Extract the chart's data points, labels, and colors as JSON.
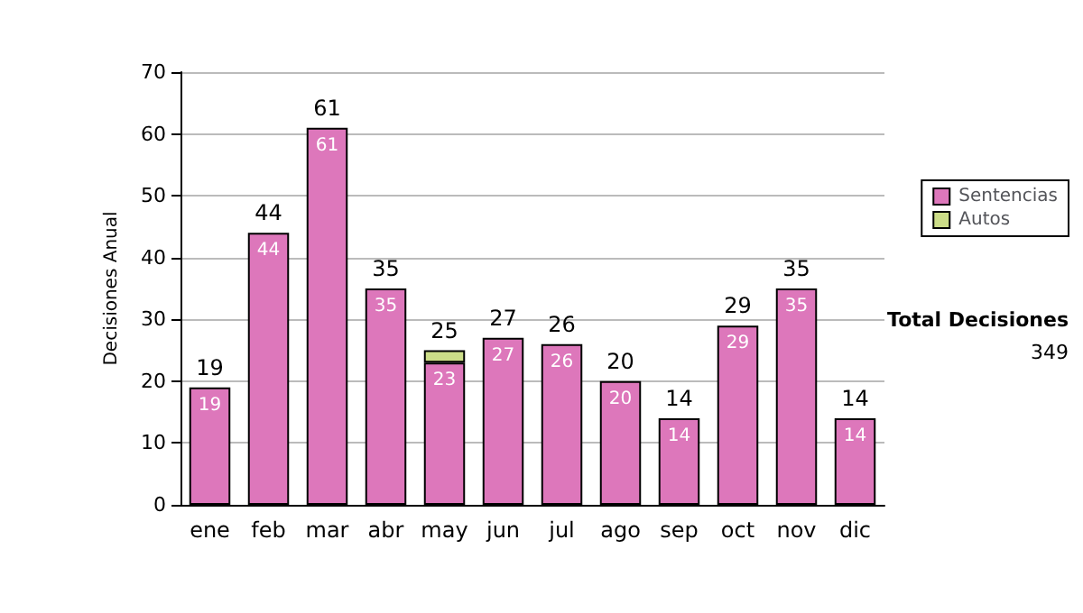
{
  "chart_data": {
    "type": "bar",
    "ylabel": "Decisiones Anual",
    "categories": [
      "ene",
      "feb",
      "mar",
      "abr",
      "may",
      "jun",
      "jul",
      "ago",
      "sep",
      "oct",
      "nov",
      "dic"
    ],
    "stacked": true,
    "series": [
      {
        "name": "Sentencias",
        "color": "#dd77bb",
        "values": [
          19,
          44,
          61,
          35,
          23,
          27,
          26,
          20,
          14,
          29,
          35,
          14
        ],
        "value_labels": [
          "19",
          "44",
          "61",
          "35",
          "23",
          "27",
          "26",
          "20",
          "14",
          "29",
          "35",
          "14"
        ]
      },
      {
        "name": "Autos",
        "color": "#ccdd88",
        "values": [
          0,
          0,
          0,
          0,
          2,
          0,
          0,
          0,
          0,
          0,
          0,
          0
        ]
      }
    ],
    "totals": [
      "19",
      "44",
      "61",
      "35",
      "25",
      "27",
      "26",
      "20",
      "14",
      "29",
      "35",
      "14"
    ],
    "ylim": [
      0,
      70
    ],
    "yticks": [
      0,
      10,
      20,
      30,
      40,
      50,
      60,
      70
    ],
    "grid": "y",
    "legend": "right",
    "annotations": [
      "Total Decisiones",
      "349"
    ]
  }
}
